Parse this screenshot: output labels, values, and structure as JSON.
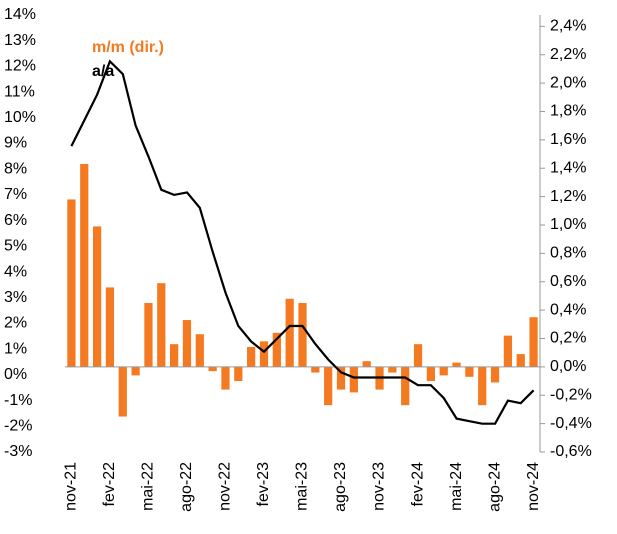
{
  "chart_data": {
    "type": "combo",
    "categories": [
      "nov-21",
      null,
      null,
      "fev-22",
      null,
      null,
      "mai-22",
      null,
      null,
      "ago-22",
      null,
      null,
      "nov-22",
      null,
      null,
      "fev-23",
      null,
      null,
      "mai-23",
      null,
      null,
      "ago-23",
      null,
      null,
      "nov-23",
      null,
      null,
      "fev-24",
      null,
      null,
      "mai-24",
      null,
      null,
      "ago-24",
      null,
      null,
      "nov-24"
    ],
    "series": [
      {
        "name": "m/m (dir.)",
        "type": "bar",
        "axis": "y2",
        "color": "#f47920",
        "values": [
          1.18,
          1.43,
          0.99,
          0.56,
          -0.35,
          -0.06,
          0.45,
          0.59,
          0.16,
          0.33,
          0.23,
          -0.03,
          -0.16,
          -0.1,
          0.14,
          0.18,
          0.24,
          0.48,
          0.45,
          -0.04,
          -0.27,
          -0.16,
          -0.18,
          0.04,
          -0.16,
          -0.04,
          -0.27,
          0.16,
          -0.1,
          -0.06,
          0.03,
          -0.07,
          -0.27,
          -0.11,
          0.22,
          0.09,
          0.35
        ]
      },
      {
        "name": "a/a",
        "type": "line",
        "color": "#000000",
        "values": [
          8.9,
          9.9,
          10.9,
          12.2,
          11.7,
          9.7,
          8.5,
          7.2,
          7.0,
          7.1,
          6.5,
          4.8,
          3.2,
          1.9,
          1.3,
          0.9,
          1.4,
          1.9,
          1.9,
          1.2,
          0.6,
          0.1,
          -0.1,
          -0.1,
          -0.1,
          -0.1,
          -0.1,
          -0.4,
          -0.4,
          -0.9,
          -1.7,
          -1.8,
          -1.9,
          -1.9,
          -1.0,
          -1.1,
          -0.6
        ]
      }
    ],
    "ylim": [
      -3,
      14
    ],
    "yticks": [
      {
        "value": -3,
        "label": "-3%"
      },
      {
        "value": -2,
        "label": "-2%"
      },
      {
        "value": -1,
        "label": "-1%"
      },
      {
        "value": 0,
        "label": "0%"
      },
      {
        "value": 1,
        "label": "1%"
      },
      {
        "value": 2,
        "label": "2%"
      },
      {
        "value": 3,
        "label": "3%"
      },
      {
        "value": 4,
        "label": "4%"
      },
      {
        "value": 5,
        "label": "5%"
      },
      {
        "value": 6,
        "label": "6%"
      },
      {
        "value": 7,
        "label": "7%"
      },
      {
        "value": 8,
        "label": "8%"
      },
      {
        "value": 9,
        "label": "9%"
      },
      {
        "value": 10,
        "label": "10%"
      },
      {
        "value": 11,
        "label": "11%"
      },
      {
        "value": 12,
        "label": "12%"
      },
      {
        "value": 13,
        "label": "13%"
      },
      {
        "value": 14,
        "label": "14%"
      }
    ],
    "y2lim": [
      -0.6,
      2.48
    ],
    "y2ticks": [
      {
        "value": -0.6,
        "label": "-0,6%"
      },
      {
        "value": -0.4,
        "label": "-0,4%"
      },
      {
        "value": -0.2,
        "label": "-0,2%"
      },
      {
        "value": 0,
        "label": "0,0%"
      },
      {
        "value": 0.2,
        "label": "0,2%"
      },
      {
        "value": 0.4,
        "label": "0,4%"
      },
      {
        "value": 0.6,
        "label": "0,6%"
      },
      {
        "value": 0.8,
        "label": "0,8%"
      },
      {
        "value": 1.0,
        "label": "1,0%"
      },
      {
        "value": 1.2,
        "label": "1,2%"
      },
      {
        "value": 1.4,
        "label": "1,4%"
      },
      {
        "value": 1.6,
        "label": "1,6%"
      },
      {
        "value": 1.8,
        "label": "1,8%"
      },
      {
        "value": 2.0,
        "label": "2,0%"
      },
      {
        "value": 2.2,
        "label": "2,2%"
      },
      {
        "value": 2.4,
        "label": "2,4%"
      }
    ],
    "grid": false
  }
}
